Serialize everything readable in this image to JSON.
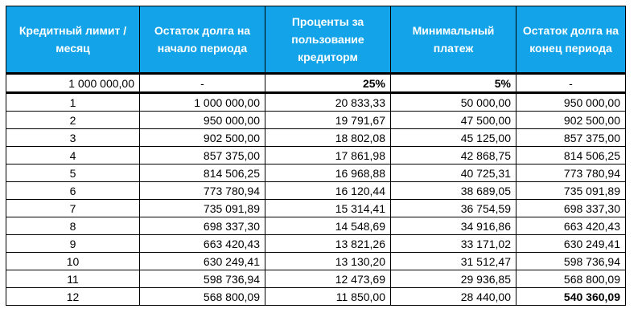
{
  "headers": [
    "Кредитный лимит / месяц",
    "Остаток долга на начало периода",
    "Проценты за пользование кредиторм",
    "Минимальный платеж",
    "Остаток долга на конец периода"
  ],
  "params": {
    "credit_limit": "1 000 000,00",
    "start_balance": "-",
    "interest_rate": "25%",
    "min_payment_rate": "5%",
    "end_balance": "-"
  },
  "rows": [
    {
      "month": "1",
      "start": "1 000 000,00",
      "interest": "20 833,33",
      "payment": "50 000,00",
      "end": "950 000,00"
    },
    {
      "month": "2",
      "start": "950 000,00",
      "interest": "19 791,67",
      "payment": "47 500,00",
      "end": "902 500,00"
    },
    {
      "month": "3",
      "start": "902 500,00",
      "interest": "18 802,08",
      "payment": "45 125,00",
      "end": "857 375,00"
    },
    {
      "month": "4",
      "start": "857 375,00",
      "interest": "17 861,98",
      "payment": "42 868,75",
      "end": "814 506,25"
    },
    {
      "month": "5",
      "start": "814 506,25",
      "interest": "16 968,88",
      "payment": "40 725,31",
      "end": "773 780,94"
    },
    {
      "month": "6",
      "start": "773 780,94",
      "interest": "16 120,44",
      "payment": "38 689,05",
      "end": "735 091,89"
    },
    {
      "month": "7",
      "start": "735 091,89",
      "interest": "15 314,41",
      "payment": "36 754,59",
      "end": "698 337,30"
    },
    {
      "month": "8",
      "start": "698 337,30",
      "interest": "14 548,69",
      "payment": "34 916,86",
      "end": "663 420,43"
    },
    {
      "month": "9",
      "start": "663 420,43",
      "interest": "13 821,26",
      "payment": "33 171,02",
      "end": "630 249,41"
    },
    {
      "month": "10",
      "start": "630 249,41",
      "interest": "13 130,20",
      "payment": "31 512,47",
      "end": "598 736,94"
    },
    {
      "month": "11",
      "start": "598 736,94",
      "interest": "12 473,69",
      "payment": "29 936,85",
      "end": "568 800,09"
    },
    {
      "month": "12",
      "start": "568 800,09",
      "interest": "11 850,00",
      "payment": "28 440,00",
      "end": "540 360,09"
    }
  ],
  "colors": {
    "header_bg": "#12a3e8",
    "header_text": "#ffffff"
  }
}
